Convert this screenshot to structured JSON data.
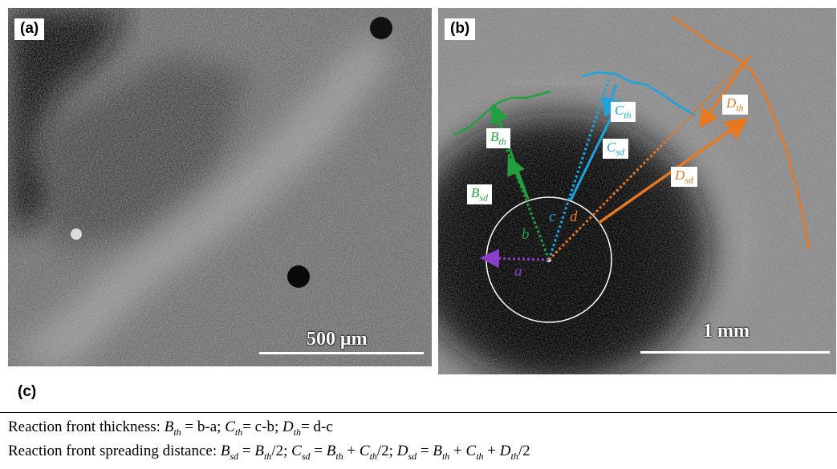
{
  "panel_a": {
    "label": "(a)",
    "scale_bar": "500 μm"
  },
  "panel_b": {
    "label": "(b)",
    "scale_bar": "1 mm",
    "radii": [
      "a",
      "b",
      "c",
      "d"
    ],
    "tags": {
      "B_th": {
        "base": "B",
        "sub": "th"
      },
      "B_sd": {
        "base": "B",
        "sub": "sd"
      },
      "C_th": {
        "base": "C",
        "sub": "th"
      },
      "C_sd": {
        "base": "C",
        "sub": "sd"
      },
      "D_th": {
        "base": "D",
        "sub": "th"
      },
      "D_sd": {
        "base": "D",
        "sub": "sd"
      }
    },
    "colors": {
      "B": "#22a040",
      "C": "#1aa5e0",
      "D": "#e87820",
      "a": "#8a3fc8"
    }
  },
  "panel_c": {
    "label": "(c)",
    "line1": {
      "prefix": "Reaction front thickness: ",
      "terms": [
        {
          "v": "B",
          "s": "th",
          "eq": " = b-a; "
        },
        {
          "v": "C",
          "s": "th",
          "eq": "= c-b; "
        },
        {
          "v": "D",
          "s": "th",
          "eq": "= d-c"
        }
      ]
    },
    "line2": {
      "prefix": "Reaction front spreading distance: ",
      "text": "B_sd = B_th/2; C_sd = B_th + C_th/2; D_sd = B_th + C_th + D_th/2"
    }
  }
}
